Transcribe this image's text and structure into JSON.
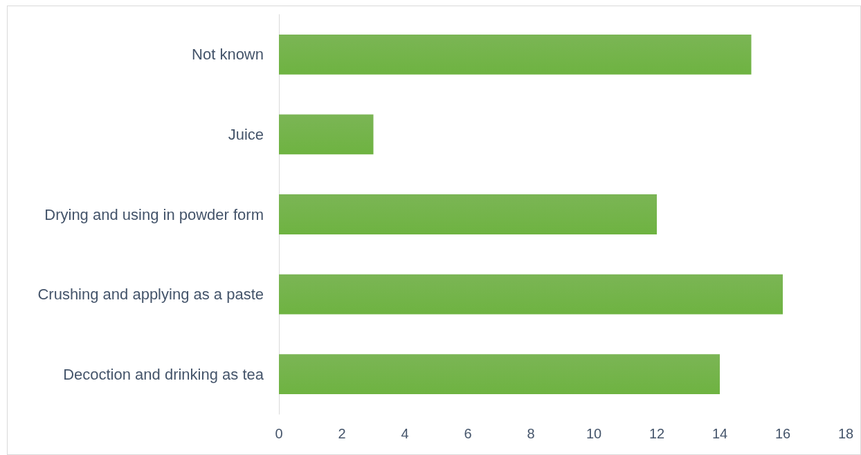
{
  "chart_data": {
    "type": "bar",
    "orientation": "horizontal",
    "categories": [
      "Not known",
      "Juice",
      "Drying and using in powder form",
      "Crushing and applying as a paste",
      "Decoction and drinking as tea"
    ],
    "values": [
      15,
      3,
      12,
      16,
      14
    ],
    "color": "#69ab3e",
    "xlim": [
      0,
      18
    ],
    "xticks": [
      0,
      2,
      4,
      6,
      8,
      10,
      12,
      14,
      16,
      18
    ],
    "grid": false
  }
}
